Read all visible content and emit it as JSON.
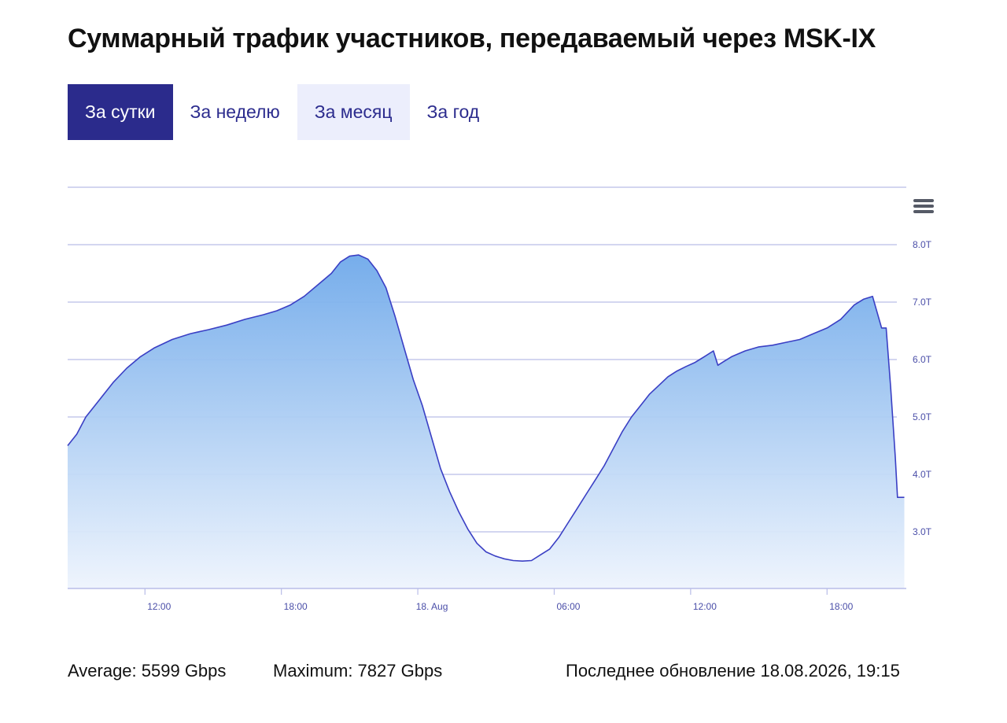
{
  "title": "Суммарный трафик участников, передаваемый через MSK-IX",
  "tabs": [
    {
      "label": "За сутки",
      "state": "active"
    },
    {
      "label": "За неделю",
      "state": "normal"
    },
    {
      "label": "За месяц",
      "state": "hover"
    },
    {
      "label": "За год",
      "state": "normal"
    }
  ],
  "colors": {
    "accent": "#2b2b8c",
    "line": "#3a3fc4",
    "fill_top": "#7fb2ec",
    "grid": "#b9bde8"
  },
  "icons": {
    "menu": "hamburger-menu-icon"
  },
  "footer": {
    "average": "Average: 5599 Gbps",
    "maximum": "Maximum: 7827 Gbps",
    "updated": "Последнее обновление 18.08.2026, 19:15"
  },
  "chart_data": {
    "type": "area",
    "title": "",
    "xlabel": "",
    "ylabel": "",
    "x_unit": "hours since 17 Aug 00:00",
    "xlim": [
      8.6,
      45.4
    ],
    "ylim": [
      2.0,
      9.0
    ],
    "y_ticks": [
      {
        "value": 3,
        "label": "3.0T"
      },
      {
        "value": 4,
        "label": "4.0T"
      },
      {
        "value": 5,
        "label": "5.0T"
      },
      {
        "value": 6,
        "label": "6.0T"
      },
      {
        "value": 7,
        "label": "7.0T"
      },
      {
        "value": 8,
        "label": "8.0T"
      }
    ],
    "x_ticks": [
      {
        "value": 12,
        "label": "12:00"
      },
      {
        "value": 18,
        "label": "18:00"
      },
      {
        "value": 24,
        "label": "18. Aug"
      },
      {
        "value": 30,
        "label": "06:00"
      },
      {
        "value": 36,
        "label": "12:00"
      },
      {
        "value": 42,
        "label": "18:00"
      }
    ],
    "grid": true,
    "legend": "none",
    "series": [
      {
        "x": [
          8.6,
          9.0,
          9.4,
          10.0,
          10.6,
          11.2,
          11.8,
          12.4,
          13.2,
          14.0,
          14.8,
          15.6,
          16.4,
          17.2,
          17.8,
          18.4,
          19.0,
          19.6,
          20.2,
          20.6,
          21.0,
          21.4,
          21.8,
          22.2,
          22.6,
          23.0,
          23.4,
          23.8,
          24.2,
          24.6,
          25.0,
          25.4,
          25.8,
          26.2,
          26.6,
          27.0,
          27.4,
          27.8,
          28.2,
          28.6,
          29.0,
          29.4,
          29.8,
          30.2,
          30.6,
          31.0,
          31.4,
          31.8,
          32.2,
          32.6,
          33.0,
          33.4,
          33.8,
          34.2,
          34.6,
          35.0,
          35.4,
          35.8,
          36.2,
          36.6,
          37.0,
          37.2,
          37.4,
          37.8,
          38.4,
          39.0,
          39.6,
          40.2,
          40.8,
          41.4,
          42.0,
          42.6,
          43.2,
          43.6,
          44.0,
          44.4,
          44.6,
          44.8,
          45.0,
          45.1,
          45.2,
          45.3,
          45.4
        ],
        "y": [
          4.5,
          4.7,
          5.0,
          5.3,
          5.6,
          5.85,
          6.05,
          6.2,
          6.35,
          6.45,
          6.52,
          6.6,
          6.7,
          6.78,
          6.85,
          6.95,
          7.1,
          7.3,
          7.5,
          7.7,
          7.8,
          7.82,
          7.75,
          7.55,
          7.25,
          6.75,
          6.2,
          5.65,
          5.2,
          4.65,
          4.1,
          3.7,
          3.35,
          3.05,
          2.8,
          2.65,
          2.58,
          2.53,
          2.5,
          2.49,
          2.5,
          2.6,
          2.7,
          2.9,
          3.15,
          3.4,
          3.65,
          3.9,
          4.15,
          4.45,
          4.75,
          5.0,
          5.2,
          5.4,
          5.55,
          5.7,
          5.8,
          5.88,
          5.95,
          6.05,
          6.15,
          5.9,
          5.95,
          6.05,
          6.15,
          6.22,
          6.25,
          6.3,
          6.35,
          6.45,
          6.55,
          6.7,
          6.95,
          7.05,
          7.1,
          6.55,
          6.55,
          5.5,
          4.3,
          3.6,
          3.6,
          3.6,
          3.6
        ]
      }
    ]
  }
}
